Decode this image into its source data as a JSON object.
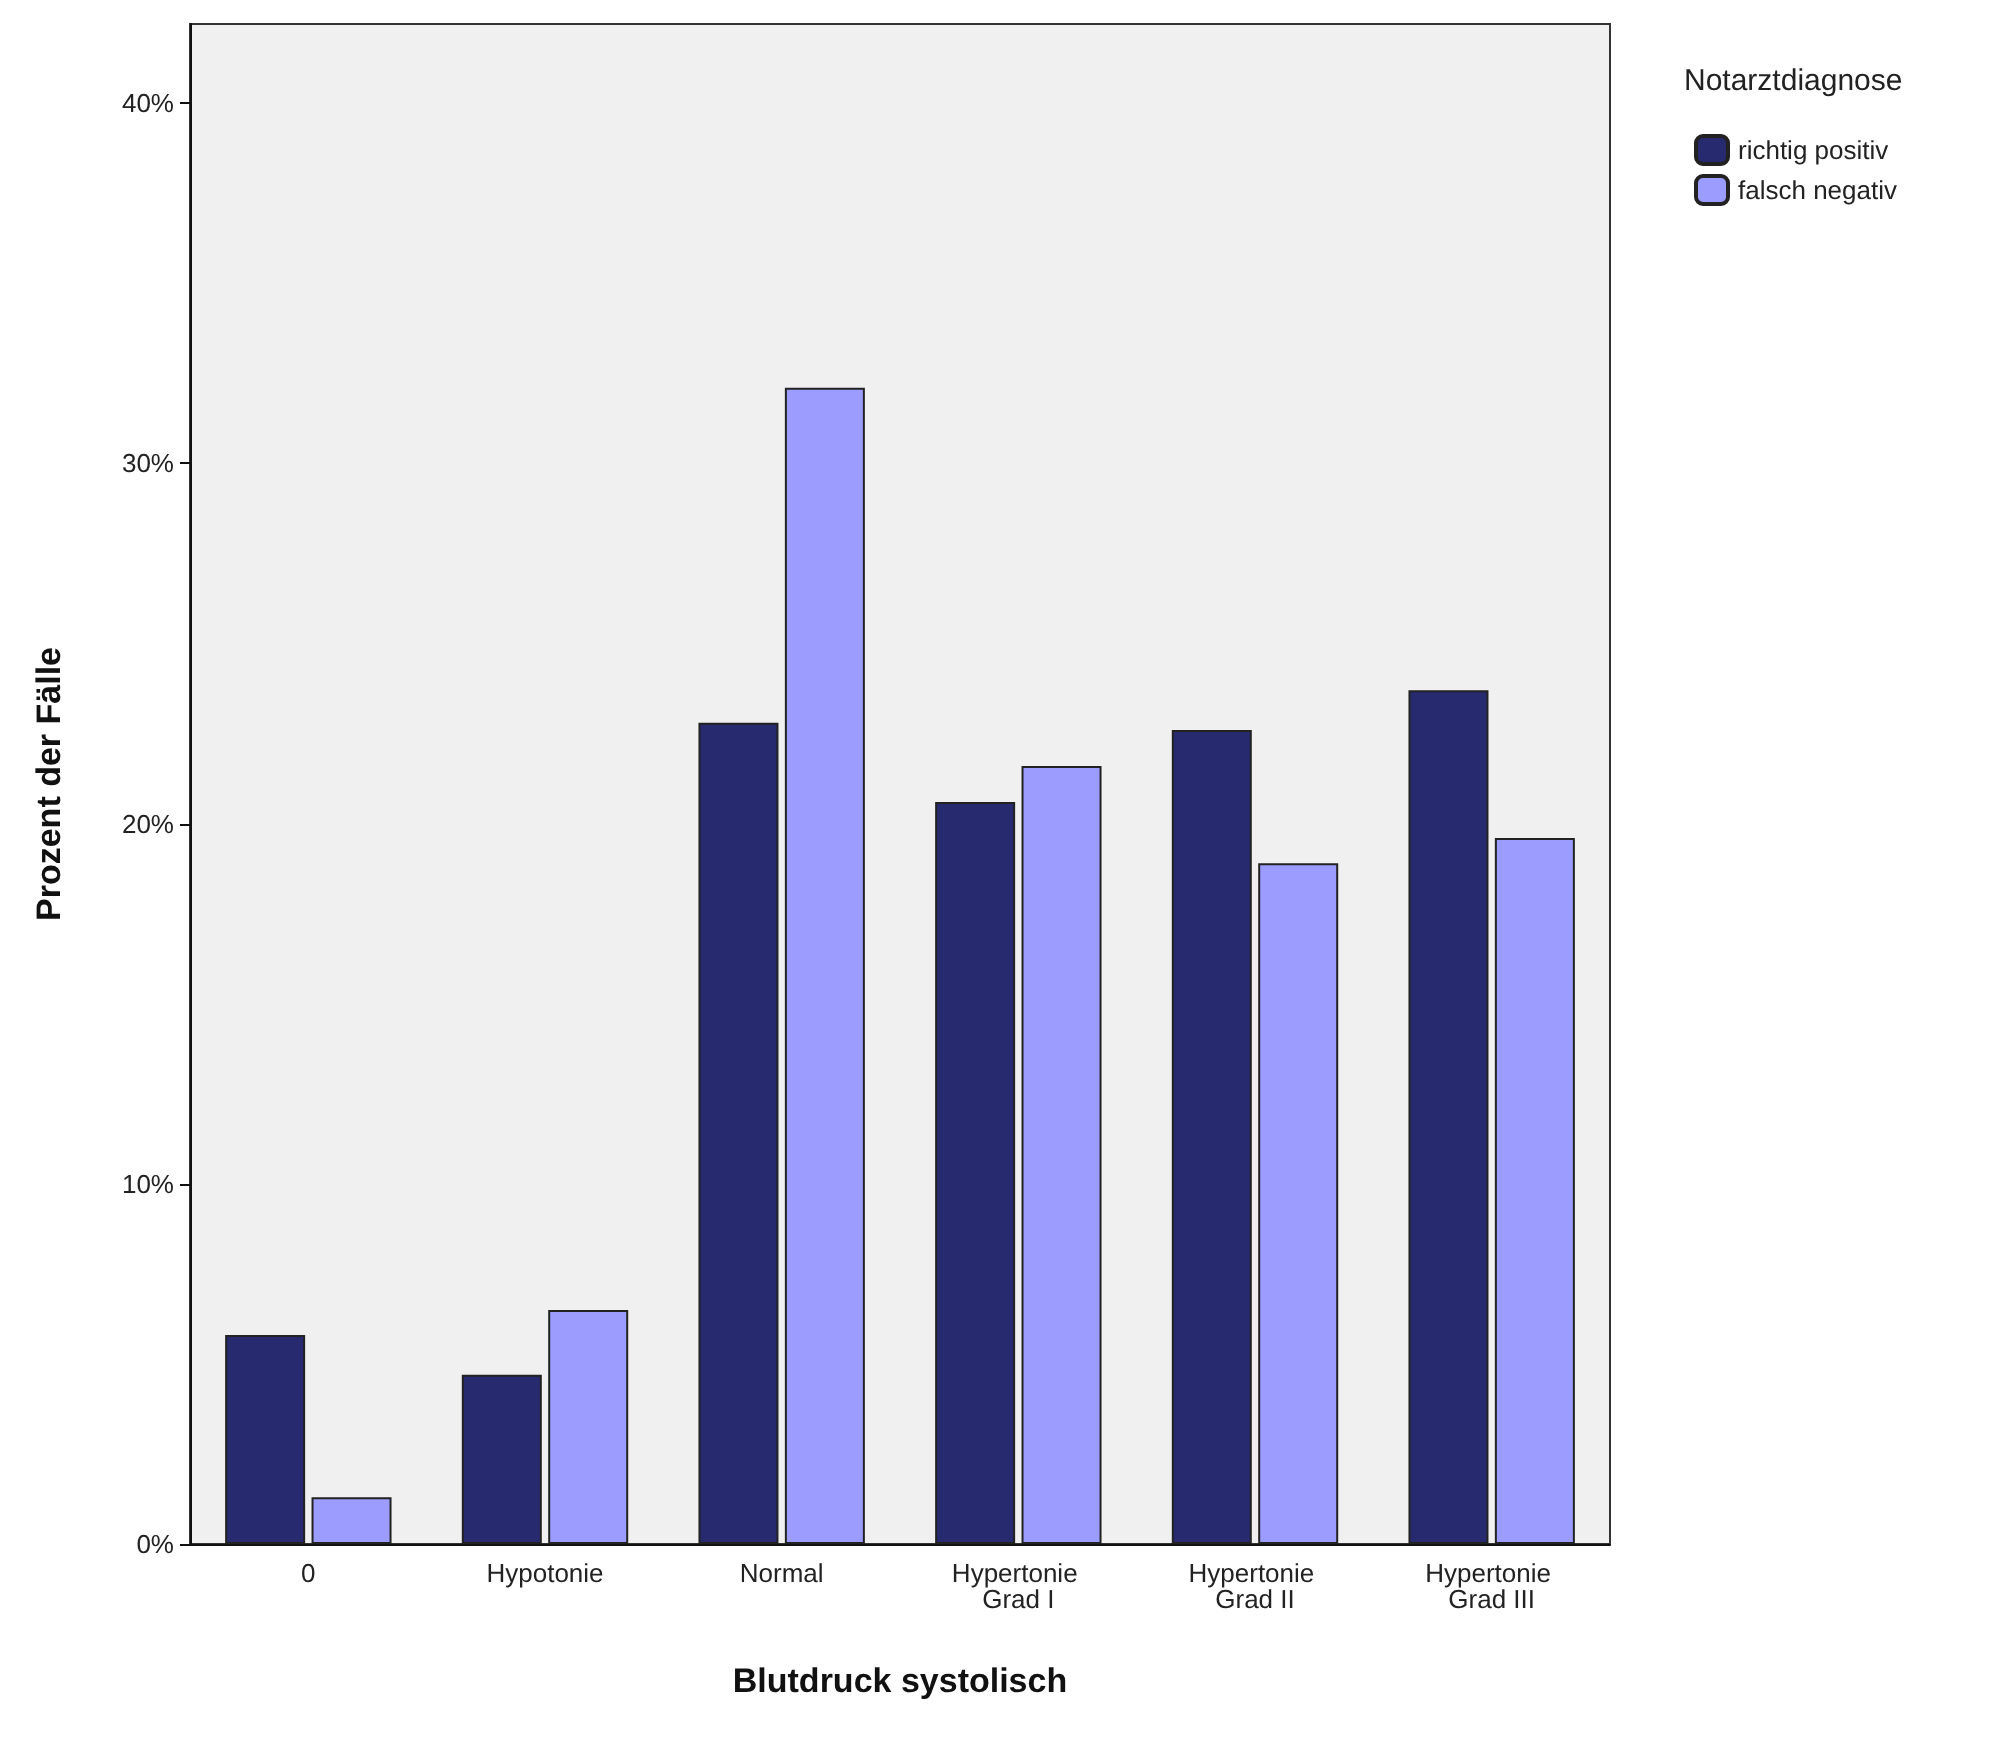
{
  "chart_data": {
    "type": "bar",
    "xlabel": "Blutdruck systolisch",
    "ylabel": "Prozent der Fälle",
    "legend_title": "Notarztdiagnose",
    "categories": [
      "0",
      "Hypotonie",
      "Normal",
      "Hypertonie Grad I",
      "Hypertonie Grad II",
      "Hypertonie Grad III"
    ],
    "series": [
      {
        "name": "richtig positiv",
        "color": "#272a6e",
        "values": [
          5.8,
          4.7,
          22.8,
          20.6,
          22.6,
          23.7
        ]
      },
      {
        "name": "falsch negativ",
        "color": "#9c9cff",
        "values": [
          1.3,
          6.5,
          32.1,
          21.6,
          18.9,
          19.6
        ]
      }
    ],
    "ylim": [
      0,
      42.2
    ],
    "yticks": [
      {
        "value": 0,
        "label": "0%"
      },
      {
        "value": 10,
        "label": "10%"
      },
      {
        "value": 20,
        "label": "20%"
      },
      {
        "value": 30,
        "label": "30%"
      },
      {
        "value": 40,
        "label": "40%"
      }
    ],
    "grid": false,
    "legend": "top right"
  }
}
